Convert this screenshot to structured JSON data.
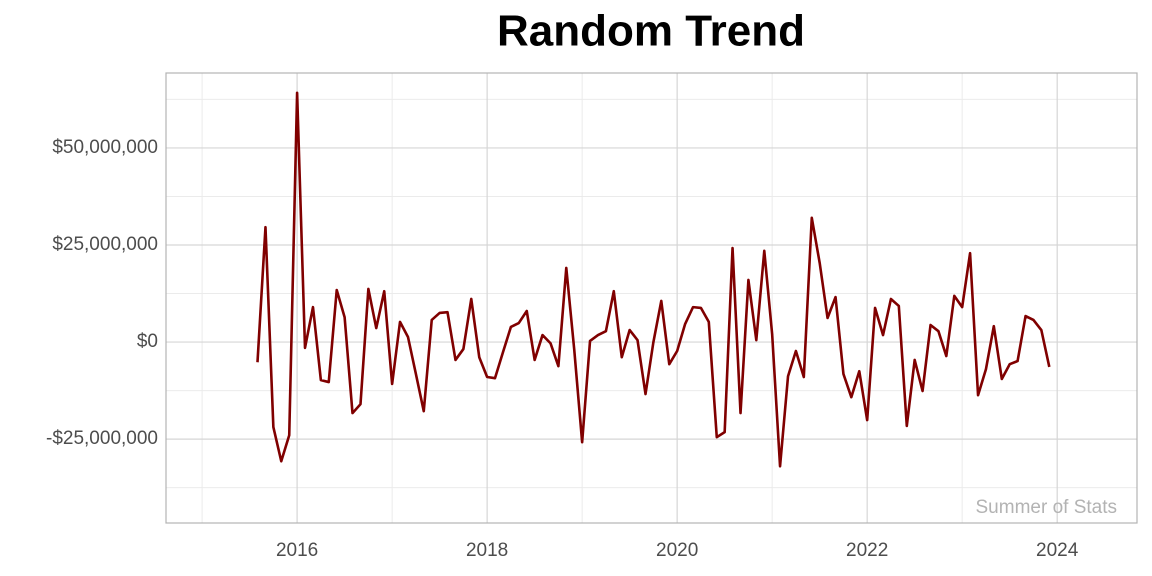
{
  "chart_data": {
    "type": "line",
    "title": "Random Trend",
    "caption": "Summer of Stats",
    "x": [
      2015.583,
      2015.667,
      2015.75,
      2015.833,
      2015.917,
      2016,
      2016.083,
      2016.167,
      2016.25,
      2016.333,
      2016.417,
      2016.5,
      2016.583,
      2016.667,
      2016.75,
      2016.833,
      2016.917,
      2017,
      2017.083,
      2017.167,
      2017.25,
      2017.333,
      2017.417,
      2017.5,
      2017.583,
      2017.667,
      2017.75,
      2017.833,
      2017.917,
      2018,
      2018.083,
      2018.167,
      2018.25,
      2018.333,
      2018.417,
      2018.5,
      2018.583,
      2018.667,
      2018.75,
      2018.833,
      2018.917,
      2019,
      2019.083,
      2019.167,
      2019.25,
      2019.333,
      2019.417,
      2019.5,
      2019.583,
      2019.667,
      2019.75,
      2019.833,
      2019.917,
      2020,
      2020.083,
      2020.167,
      2020.25,
      2020.333,
      2020.417,
      2020.5,
      2020.583,
      2020.667,
      2020.75,
      2020.833,
      2020.917,
      2021,
      2021.083,
      2021.167,
      2021.25,
      2021.333,
      2021.417,
      2021.5,
      2021.583,
      2021.667,
      2021.75,
      2021.833,
      2021.917,
      2022,
      2022.083,
      2022.167,
      2022.25,
      2022.333,
      2022.417,
      2022.5,
      2022.583,
      2022.667,
      2022.75,
      2022.833,
      2022.917,
      2023,
      2023.083,
      2023.167,
      2023.25,
      2023.333,
      2023.417,
      2023.5,
      2023.583,
      2023.667,
      2023.75,
      2023.833,
      2023.917
    ],
    "series": [
      {
        "color": "#800000",
        "values": [
          -5200000,
          29600000,
          -21900000,
          -30700000,
          -24000000,
          64200000,
          -1500000,
          9000000,
          -9800000,
          -10300000,
          13400000,
          6400000,
          -18300000,
          -16000000,
          13700000,
          3600000,
          13100000,
          -10800000,
          5200000,
          1300000,
          -8200000,
          -17800000,
          5700000,
          7500000,
          7700000,
          -4600000,
          -1800000,
          11100000,
          -3900000,
          -9000000,
          -9300000,
          -2600000,
          3900000,
          4900000,
          8000000,
          -4600000,
          1800000,
          -300000,
          -6200000,
          19100000,
          -2000000,
          -25800000,
          300000,
          1800000,
          2800000,
          13100000,
          -3900000,
          3100000,
          500000,
          -13400000,
          0,
          10600000,
          -5700000,
          -2300000,
          4600000,
          9000000,
          8800000,
          5200000,
          -24500000,
          -23200000,
          24200000,
          -18300000,
          16000000,
          500000,
          23500000,
          2000000,
          -32000000,
          -8800000,
          -2300000,
          -9000000,
          32000000,
          20400000,
          6200000,
          11600000,
          -8200000,
          -14200000,
          -7500000,
          -20100000,
          8800000,
          1800000,
          11100000,
          9300000,
          -21600000,
          -4600000,
          -12600000,
          4400000,
          2800000,
          -3600000,
          11900000,
          9000000,
          22900000,
          -13700000,
          -7000000,
          4100000,
          -9500000,
          -5700000,
          -4900000,
          6700000,
          5700000,
          3100000,
          -6400000
        ]
      }
    ],
    "xlim": [
      2014.62,
      2024.84
    ],
    "ylim": [
      -46600000,
      69300000
    ],
    "xticks": [
      2016,
      2018,
      2020,
      2022,
      2024
    ],
    "x_minor_ticks": [
      2015,
      2017,
      2019,
      2021,
      2023
    ],
    "yticks": [
      {
        "value": -25000000,
        "label": "-$25,000,000"
      },
      {
        "value": 0,
        "label": "$0"
      },
      {
        "value": 25000000,
        "label": "$25,000,000"
      },
      {
        "value": 50000000,
        "label": "$50,000,000"
      }
    ],
    "y_minor_ticks": [
      -37500000,
      -12500000,
      12500000,
      37500000,
      62500000
    ],
    "grid": true
  }
}
